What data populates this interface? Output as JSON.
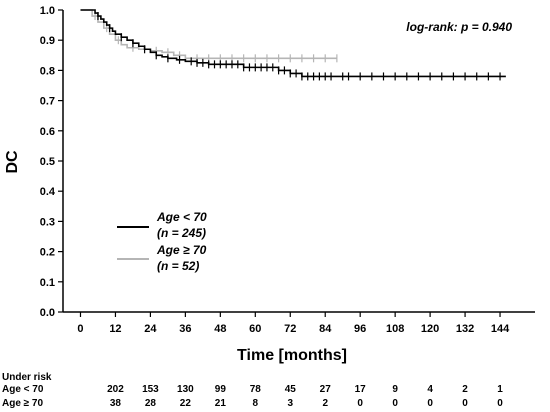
{
  "chart_data": {
    "type": "line",
    "title": "",
    "xlabel": "Time [months]",
    "ylabel": "DC",
    "xlim": [
      -6,
      156
    ],
    "ylim": [
      0,
      1.0
    ],
    "x_ticks": [
      0,
      12,
      24,
      36,
      48,
      60,
      72,
      84,
      96,
      108,
      120,
      132,
      144
    ],
    "y_ticks": [
      "0.0",
      "0.1",
      "0.2",
      "0.3",
      "0.4",
      "0.5",
      "0.6",
      "0.7",
      "0.8",
      "0.9",
      "1.0"
    ],
    "annotation": "log-rank: p = 0.940",
    "series": [
      {
        "name": "Age < 70",
        "count_label": "(n = 245)",
        "color": "#000000",
        "steps": [
          [
            0,
            1.0
          ],
          [
            4,
            1.0
          ],
          [
            5,
            0.99
          ],
          [
            6,
            0.98
          ],
          [
            7,
            0.97
          ],
          [
            8,
            0.96
          ],
          [
            9,
            0.95
          ],
          [
            10,
            0.94
          ],
          [
            11,
            0.93
          ],
          [
            12,
            0.92
          ],
          [
            14,
            0.91
          ],
          [
            16,
            0.9
          ],
          [
            18,
            0.89
          ],
          [
            20,
            0.88
          ],
          [
            22,
            0.87
          ],
          [
            24,
            0.86
          ],
          [
            26,
            0.85
          ],
          [
            28,
            0.845
          ],
          [
            30,
            0.84
          ],
          [
            33,
            0.835
          ],
          [
            36,
            0.83
          ],
          [
            40,
            0.825
          ],
          [
            44,
            0.82
          ],
          [
            56,
            0.81
          ],
          [
            68,
            0.8
          ],
          [
            72,
            0.79
          ],
          [
            76,
            0.78
          ],
          [
            146,
            0.78
          ]
        ],
        "censor_x": [
          6,
          10,
          14,
          18,
          22,
          26,
          30,
          34,
          38,
          40,
          42,
          44,
          46,
          48,
          50,
          52,
          54,
          56,
          58,
          60,
          62,
          64,
          66,
          68,
          70,
          72,
          74,
          76,
          78,
          80,
          82,
          84,
          86,
          90,
          92,
          96,
          100,
          104,
          108,
          112,
          116,
          120,
          124,
          128,
          132,
          136,
          140,
          144
        ]
      },
      {
        "name": "Age ≥ 70",
        "count_label": "(n = 52)",
        "color": "#b5b5b5",
        "steps": [
          [
            0,
            1.0
          ],
          [
            3,
            1.0
          ],
          [
            4,
            0.98
          ],
          [
            6,
            0.96
          ],
          [
            8,
            0.94
          ],
          [
            10,
            0.92
          ],
          [
            12,
            0.9
          ],
          [
            14,
            0.885
          ],
          [
            16,
            0.875
          ],
          [
            20,
            0.87
          ],
          [
            24,
            0.865
          ],
          [
            28,
            0.86
          ],
          [
            32,
            0.85
          ],
          [
            36,
            0.84
          ],
          [
            88,
            0.84
          ]
        ],
        "censor_x": [
          5,
          9,
          13,
          18,
          22,
          26,
          30,
          34,
          40,
          44,
          48,
          52,
          56,
          60,
          64,
          68,
          72,
          76,
          80,
          84,
          88
        ]
      }
    ],
    "risk_table": {
      "header": "Under risk",
      "x": [
        12,
        24,
        36,
        48,
        60,
        72,
        84,
        96,
        108,
        120,
        132,
        144
      ],
      "rows": [
        {
          "label": "Age < 70",
          "values": [
            202,
            153,
            130,
            99,
            78,
            45,
            27,
            17,
            9,
            4,
            2,
            1
          ]
        },
        {
          "label": "Age ≥ 70",
          "values": [
            38,
            28,
            22,
            21,
            8,
            3,
            2,
            0,
            0,
            0,
            0,
            0
          ]
        }
      ]
    }
  }
}
